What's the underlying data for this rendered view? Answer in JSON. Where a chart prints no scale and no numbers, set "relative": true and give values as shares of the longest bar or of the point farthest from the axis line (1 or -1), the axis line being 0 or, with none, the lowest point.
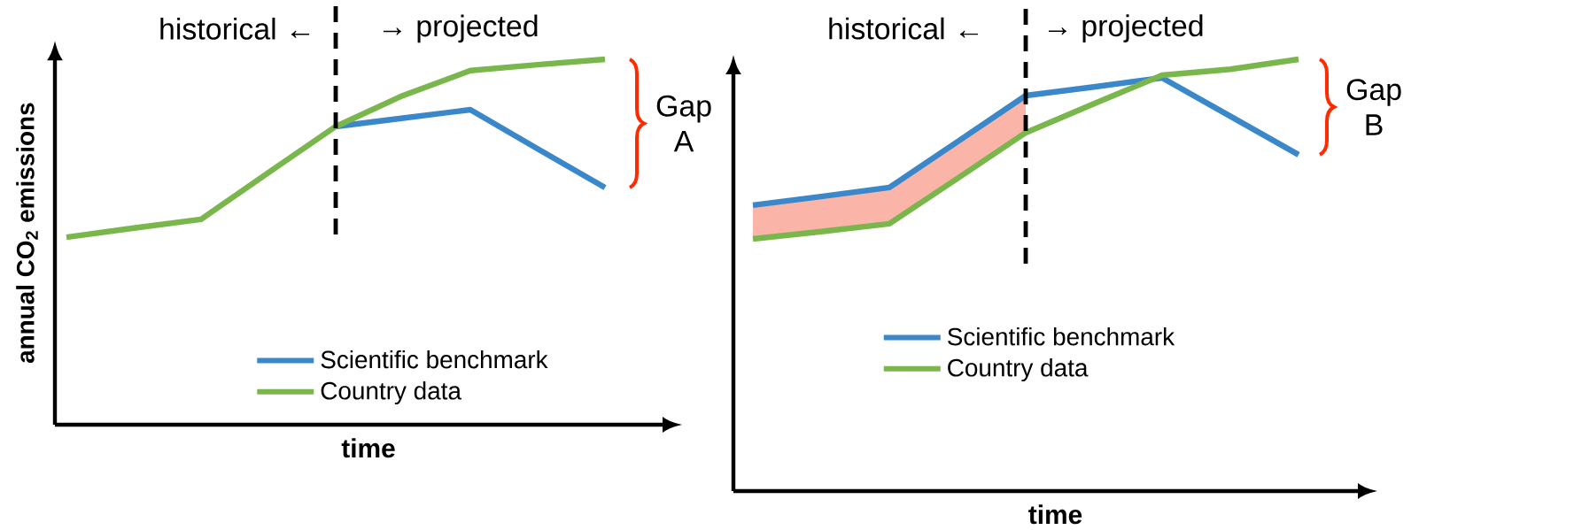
{
  "chart_data": [
    {
      "type": "line",
      "relative": true,
      "xlabel": "time",
      "ylabel": "annual CO$_{2}$ emissions",
      "categories": [
        null,
        null,
        null,
        null,
        null,
        null,
        null,
        null,
        null
      ],
      "legend": "bottom",
      "series": [
        {
          "name": "Scientific benchmark",
          "color": "#3a88c9",
          "values": [
            null,
            null,
            null,
            null,
            0.816,
            0.839,
            0.862,
            0.755,
            0.649
          ]
        },
        {
          "name": "Country data",
          "color": "#79b74c",
          "values": [
            0.513,
            0.538,
            0.562,
            0.69,
            0.816,
            0.901,
            0.969,
            0.985,
            1
          ]
        }
      ],
      "annotations": [
        "historical ←",
        "→ projected",
        "Gap A"
      ]
    },
    {
      "type": "line",
      "relative": true,
      "xlabel": "time",
      "categories": [
        null,
        null,
        null,
        null,
        null,
        null,
        null,
        null,
        null
      ],
      "legend": "bottom",
      "series": [
        {
          "name": "Scientific benchmark",
          "color": "#3a88c9",
          "values": [
            0.662,
            0.682,
            0.703,
            0.809,
            0.916,
            0.936,
            0.957,
            0.868,
            0.779
          ],
          "upper": [
            0.662,
            0.682,
            0.703,
            0.809,
            0.916,
            null,
            null,
            null,
            null
          ],
          "lower": [
            0.584,
            0.601,
            0.619,
            0.724,
            0.83,
            null,
            null,
            null,
            null
          ]
        },
        {
          "name": "Country data",
          "color": "#79b74c",
          "values": [
            0.584,
            0.601,
            0.619,
            0.724,
            0.83,
            0.897,
            0.963,
            0.977,
            1
          ]
        }
      ],
      "annotations": [
        "historical ←",
        "→ projected",
        "Gap B"
      ]
    }
  ]
}
